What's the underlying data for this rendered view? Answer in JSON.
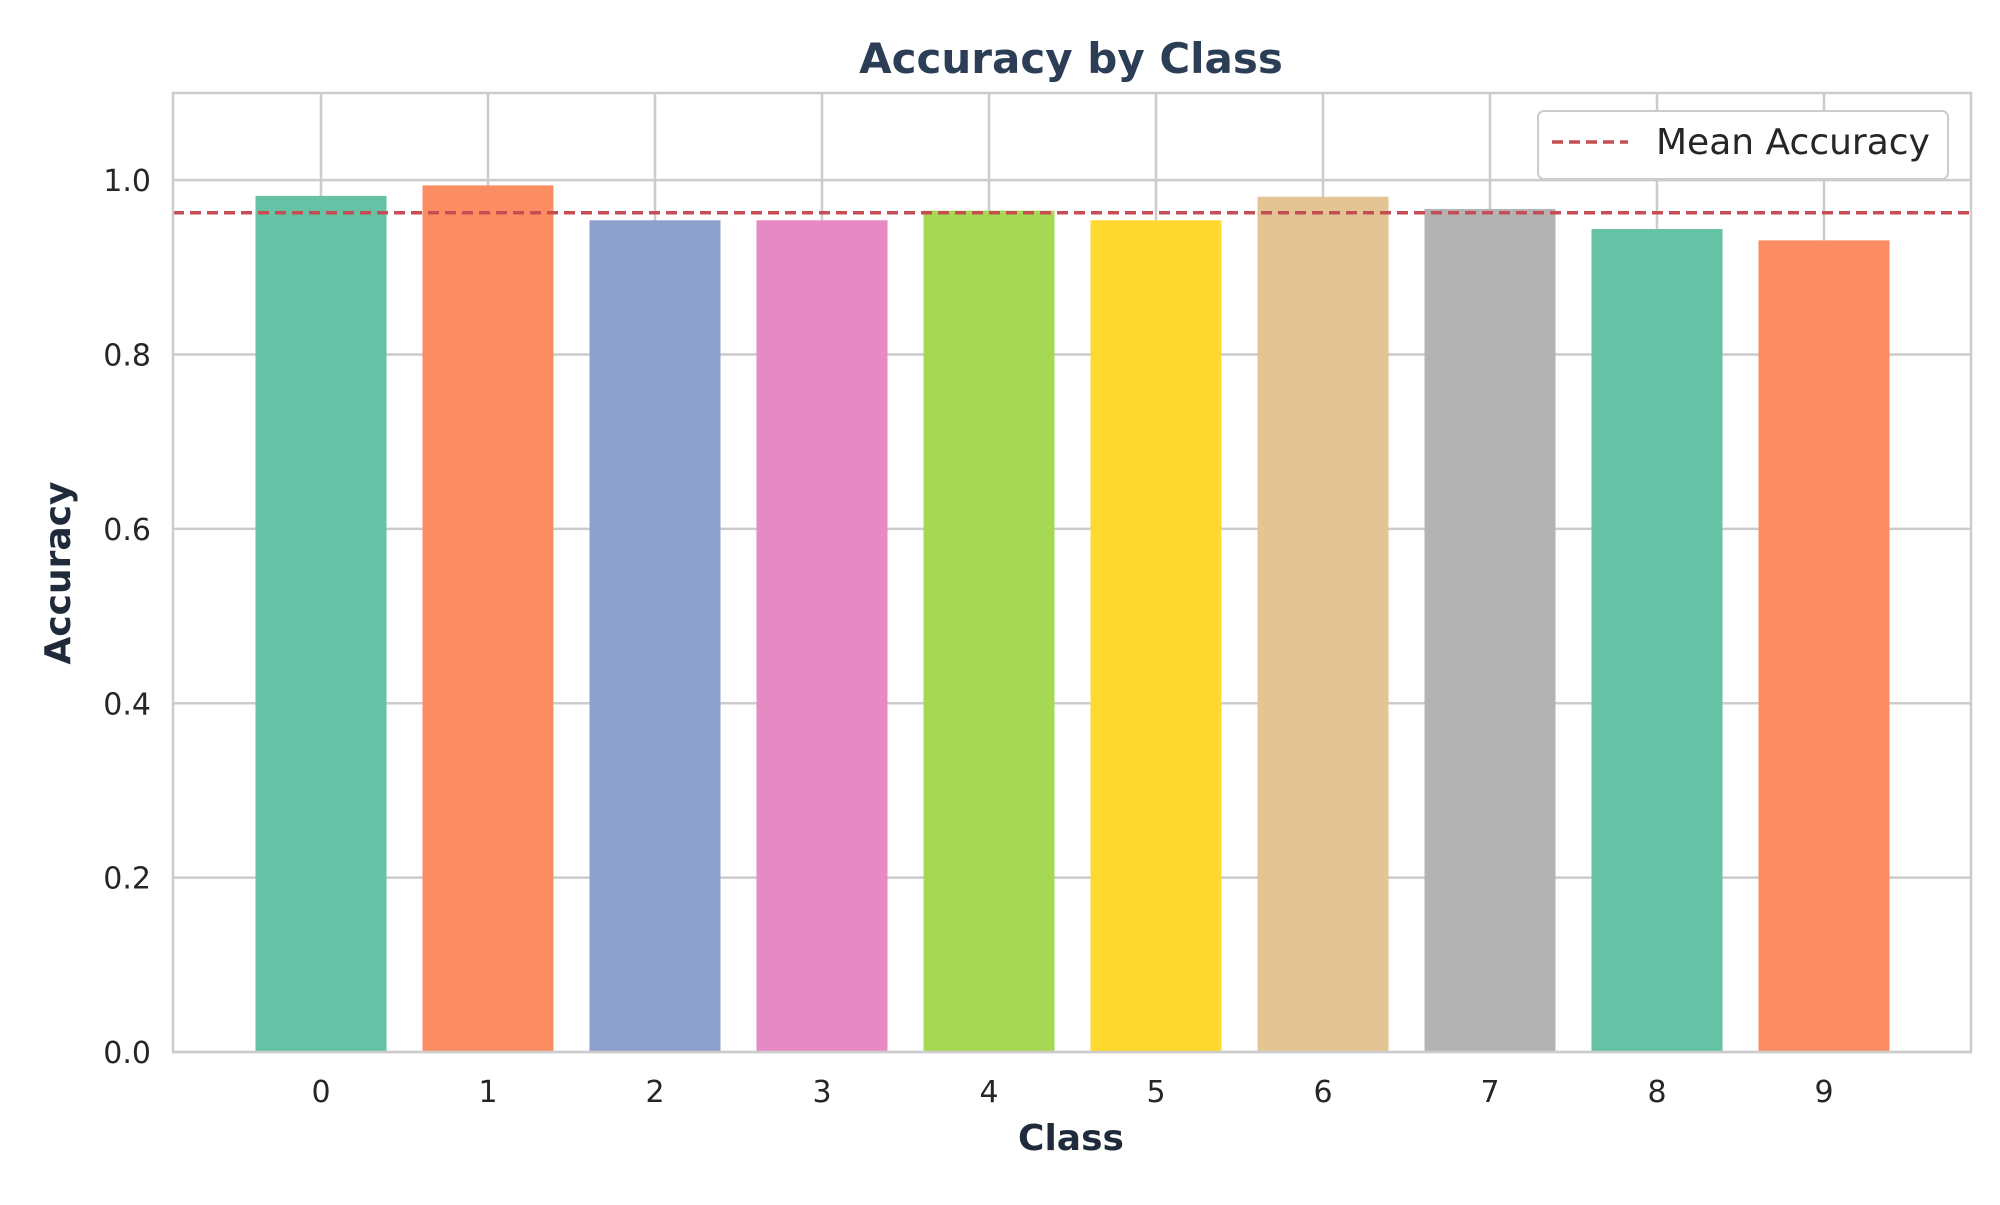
{
  "chart_data": {
    "type": "bar",
    "title": "Accuracy by Class",
    "xlabel": "Class",
    "ylabel": "Accuracy",
    "categories": [
      "0",
      "1",
      "2",
      "3",
      "4",
      "5",
      "6",
      "7",
      "8",
      "9"
    ],
    "values": [
      0.982,
      0.994,
      0.954,
      0.954,
      0.965,
      0.954,
      0.981,
      0.967,
      0.944,
      0.931
    ],
    "bar_colors": [
      "#66c2a5",
      "#fc8d62",
      "#8da0cb",
      "#e78ac3",
      "#a6d854",
      "#ffd92f",
      "#e5c494",
      "#b3b3b3",
      "#66c2a5",
      "#fc8d62"
    ],
    "ylim": [
      0,
      1.1
    ],
    "yticks": [
      0.0,
      0.2,
      0.4,
      0.6,
      0.8,
      1.0
    ],
    "ytick_labels": [
      "0.0",
      "0.2",
      "0.4",
      "0.6",
      "0.8",
      "1.0"
    ],
    "mean_line": {
      "value": 0.9626,
      "label": "Mean Accuracy",
      "color": "#c44e52",
      "style": "dashed"
    },
    "grid": true,
    "legend_position": "top-right"
  }
}
